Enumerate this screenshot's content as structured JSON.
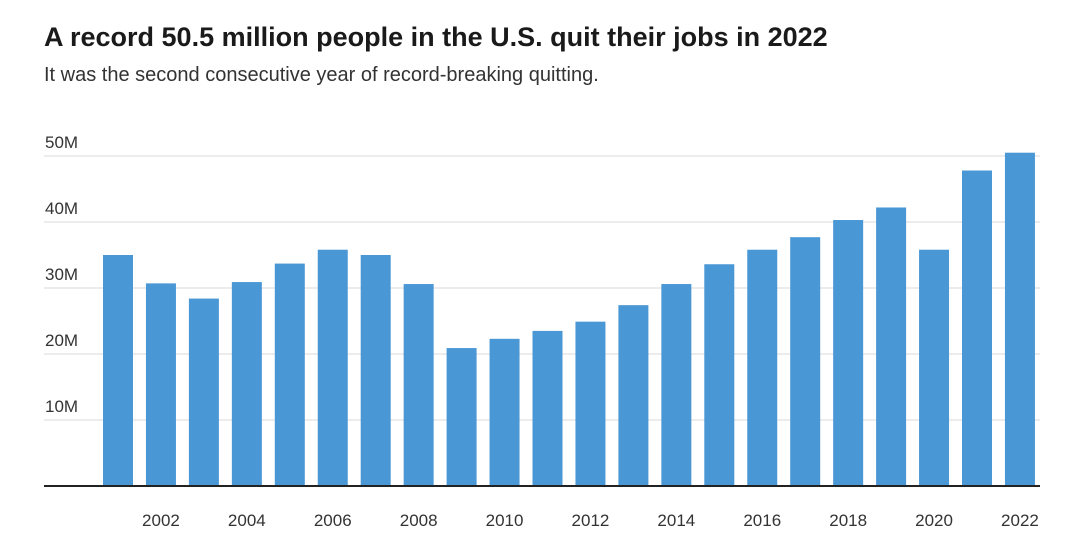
{
  "chart_data": {
    "type": "bar",
    "title": "A record 50.5 million people in the U.S. quit their jobs in 2022",
    "subtitle": "It was the second consecutive year of record-breaking quitting.",
    "xlabel": "",
    "ylabel": "",
    "categories": [
      "2001",
      "2002",
      "2003",
      "2004",
      "2005",
      "2006",
      "2007",
      "2008",
      "2009",
      "2010",
      "2011",
      "2012",
      "2013",
      "2014",
      "2015",
      "2016",
      "2017",
      "2018",
      "2019",
      "2020",
      "2021",
      "2022"
    ],
    "x_tick_labels": [
      "2002",
      "2004",
      "2006",
      "2008",
      "2010",
      "2012",
      "2014",
      "2016",
      "2018",
      "2020",
      "2022"
    ],
    "y_tick_labels": [
      "10M",
      "20M",
      "30M",
      "40M",
      "50M"
    ],
    "y_ticks": [
      10,
      20,
      30,
      40,
      50
    ],
    "values": [
      35.0,
      30.7,
      28.4,
      30.9,
      33.7,
      35.8,
      35.0,
      30.6,
      20.9,
      22.3,
      23.5,
      24.9,
      27.4,
      30.6,
      33.6,
      35.8,
      37.7,
      40.3,
      42.2,
      35.8,
      47.8,
      50.5
    ],
    "unit": "M",
    "ylim": [
      0,
      50
    ],
    "grid": true,
    "bar_color": "#4a97d6"
  }
}
